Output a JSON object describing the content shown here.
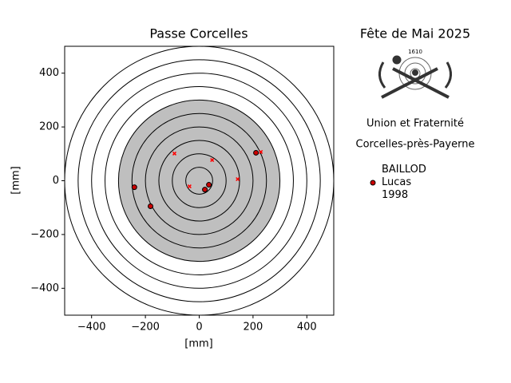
{
  "chart_data": {
    "type": "scatter",
    "title": "Passe Corcelles",
    "xlabel": "[mm]",
    "ylabel": "[mm]",
    "xlim": [
      -500,
      500
    ],
    "ylim": [
      -500,
      500
    ],
    "xticks": [
      {
        "value": -400,
        "label": "−400"
      },
      {
        "value": -200,
        "label": "−200"
      },
      0,
      200,
      400
    ],
    "yticks": [
      {
        "value": -400,
        "label": "−400"
      },
      {
        "value": -200,
        "label": "−200"
      },
      0,
      200,
      400
    ],
    "rings": [
      50,
      100,
      150,
      200,
      250,
      300,
      350,
      400,
      450,
      500
    ],
    "filled_radius": 300,
    "fill_color": "#bfbfbf",
    "series": [
      {
        "name": "BAILLOD\nLucas\n1998",
        "color": "#cc0000",
        "marker": "o",
        "x": [
          -241,
          -181,
          211,
          36,
          21
        ],
        "values": [
          -24,
          -95,
          104,
          -15,
          -33
        ]
      },
      {
        "color": "#ff0000",
        "marker": "x",
        "x": [
          -92,
          48,
          229,
          143,
          -36
        ],
        "values": [
          101,
          77,
          107,
          6,
          -21
        ]
      }
    ]
  },
  "panel": {
    "title": "Fête de Mai 2025",
    "emblem_text": "1610",
    "lines": [
      "Union et Fraternité",
      "Corcelles-près-Payerne"
    ]
  }
}
